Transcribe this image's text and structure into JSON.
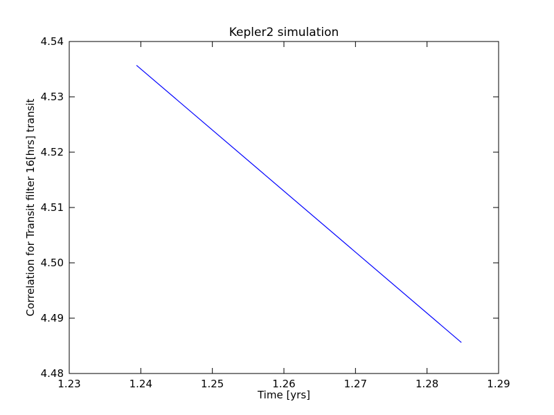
{
  "chart_data": {
    "type": "line",
    "title": "Kepler2 simulation",
    "xlabel": "Time [yrs]",
    "ylabel": "Correlation for Transit filter 16[hrs] transit",
    "xlim": [
      1.23,
      1.29
    ],
    "ylim": [
      4.48,
      4.54
    ],
    "xticks": [
      "1.23",
      "1.24",
      "1.25",
      "1.26",
      "1.27",
      "1.28",
      "1.29"
    ],
    "yticks": [
      "4.48",
      "4.49",
      "4.50",
      "4.51",
      "4.52",
      "4.53",
      "4.54"
    ],
    "grid": false,
    "series": [
      {
        "color": "#0000ff",
        "x": [
          1.2394,
          1.2848
        ],
        "y": [
          4.5357,
          4.4856
        ]
      }
    ]
  }
}
